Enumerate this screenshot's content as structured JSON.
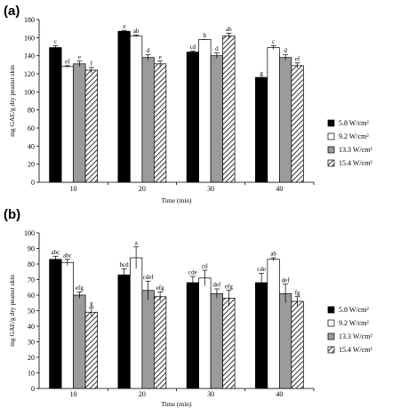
{
  "colors": {
    "series": [
      "#000000",
      "#ffffff",
      "#9b9b9b",
      "hatch"
    ],
    "axis": "#000000"
  },
  "chart_data": [
    {
      "type": "bar",
      "panel_label": "(a)",
      "categories": [
        "10",
        "20",
        "30",
        "40"
      ],
      "xlabel": "Time (min)",
      "ylabel": "mg GAE/g dry peanut skin",
      "ylim": [
        0,
        180
      ],
      "yticks": [
        "0",
        "20",
        "40",
        "60",
        "80",
        "100",
        "120",
        "140",
        "160",
        "180"
      ],
      "grid": false,
      "legend_position": "right",
      "series": [
        {
          "name": "5.8 W/cm²",
          "values": [
            149,
            167,
            144,
            116
          ],
          "errors": [
            2,
            1,
            1,
            0
          ],
          "letters": [
            "c",
            "a",
            "cd",
            "g"
          ]
        },
        {
          "name": "9.2 W/cm²",
          "values": [
            128,
            162,
            158,
            149
          ],
          "errors": [
            1,
            1,
            0,
            2
          ],
          "letters": [
            "ef",
            "ab",
            "b",
            "c"
          ]
        },
        {
          "name": "13.3 W/cm²",
          "values": [
            131,
            138,
            140,
            138
          ],
          "errors": [
            3,
            3,
            3,
            3
          ],
          "letters": [
            "e",
            "d",
            "d",
            "d"
          ]
        },
        {
          "name": "15.4 W/cm²",
          "values": [
            124,
            131,
            162,
            129
          ],
          "errors": [
            3,
            3,
            3,
            3
          ],
          "letters": [
            "f",
            "e",
            "ab",
            "ef"
          ]
        }
      ]
    },
    {
      "type": "bar",
      "panel_label": "(b)",
      "categories": [
        "10",
        "20",
        "30",
        "40"
      ],
      "xlabel": "Time (min)",
      "ylabel": "mg GAE/g dry peanut skin",
      "ylim": [
        0,
        100
      ],
      "yticks": [
        "0",
        "10",
        "20",
        "30",
        "40",
        "50",
        "60",
        "70",
        "80",
        "90",
        "100"
      ],
      "grid": false,
      "legend_position": "right",
      "series": [
        {
          "name": "5.8 W/cm²",
          "values": [
            83,
            73,
            68,
            68
          ],
          "errors": [
            2,
            4,
            4,
            6
          ],
          "letters": [
            "abc",
            "bcd",
            "cde",
            "cde"
          ]
        },
        {
          "name": "9.2 W/cm²",
          "values": [
            81,
            84,
            71,
            83
          ],
          "errors": [
            2,
            7,
            5,
            1
          ],
          "letters": [
            "abc",
            "a",
            "cd",
            "ab"
          ]
        },
        {
          "name": "13.3 W/cm²",
          "values": [
            60,
            63,
            61,
            61
          ],
          "errors": [
            2,
            6,
            3,
            6
          ],
          "letters": [
            "efg",
            "cdef",
            "def",
            "def"
          ]
        },
        {
          "name": "15.4 W/cm²",
          "values": [
            49,
            59,
            58,
            56
          ],
          "errors": [
            3,
            3,
            5,
            3
          ],
          "letters": [
            "g",
            "efg",
            "efg",
            "fg"
          ]
        }
      ]
    }
  ]
}
